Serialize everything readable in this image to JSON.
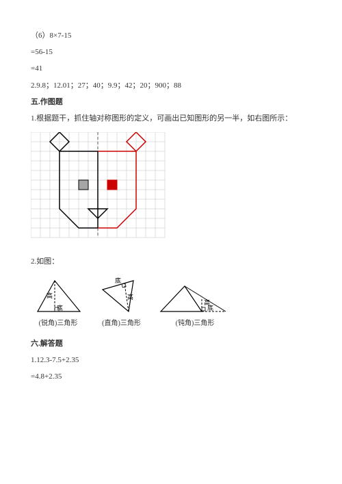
{
  "lines": {
    "l1": "（6）8×7-15",
    "l2": "=56-15",
    "l3": "=41",
    "l4": "2.9.8；12.01；27；40；9.9；42；20；900；88"
  },
  "section5": {
    "title": "五.作图题",
    "q1": "1.根据题干，抓住轴对称图形的定义，可画出已知图形的另一半，如右图所示：",
    "q2": "2.如图："
  },
  "grid": {
    "cols": 14,
    "rows": 11,
    "cell": 14,
    "line_color": "#bfbfbf",
    "axis_dash_color": "#555555",
    "black": "#000000",
    "red": "#cc0000",
    "fill_gray": "#a6a6a6",
    "fill_red": "#cc0000"
  },
  "triangles": {
    "t1": {
      "label": "(锐角)三角形",
      "base": "底",
      "height": "高"
    },
    "t2": {
      "label": "(直角)三角形",
      "base": "底",
      "height": "高"
    },
    "t3": {
      "label": "(钝角)三角形",
      "base": "底",
      "height": "高"
    }
  },
  "section6": {
    "title": "六.解答题",
    "l1": "1.12.3-7.5+2.35",
    "l2": "=4.8+2.35"
  }
}
